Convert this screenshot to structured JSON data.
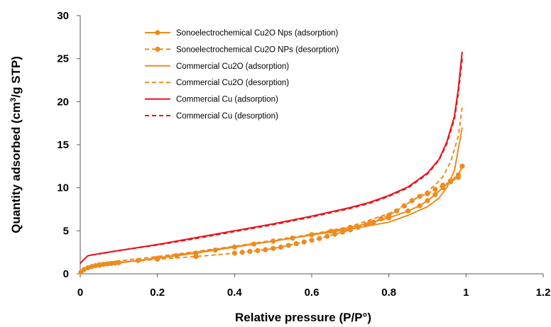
{
  "chart_data": {
    "type": "line",
    "xlabel": "Relative pressure (P/P°)",
    "ylabel_main": "Quantity adsorbed (cm",
    "ylabel_sup": "3",
    "ylabel_tail": "/g STP)",
    "xlim": [
      0,
      1.2
    ],
    "ylim": [
      0,
      30
    ],
    "xticks": [
      0,
      0.2,
      0.4,
      0.6,
      0.8,
      1,
      1.2
    ],
    "xtick_labels": [
      "0",
      "0.2",
      "0.4",
      "0.6",
      "0.8",
      "1",
      "1.2"
    ],
    "yticks": [
      0,
      5,
      10,
      15,
      20,
      25,
      30
    ],
    "ytick_labels": [
      "0",
      "5",
      "10",
      "15",
      "20",
      "25",
      "30"
    ],
    "grid": false,
    "legend_position": "top-left",
    "series": [
      {
        "name": "Sonoelectrochemical Cu2O Nps (adsorption)",
        "color": "#ed8c1f",
        "dash": "solid",
        "marker": true,
        "x": [
          0.002,
          0.01,
          0.02,
          0.03,
          0.04,
          0.05,
          0.06,
          0.07,
          0.08,
          0.09,
          0.1,
          0.15,
          0.2,
          0.25,
          0.3,
          0.35,
          0.4,
          0.45,
          0.5,
          0.55,
          0.6,
          0.65,
          0.7,
          0.75,
          0.8,
          0.85,
          0.88,
          0.9,
          0.92,
          0.94,
          0.96,
          0.98,
          0.99
        ],
        "y": [
          0.2,
          0.5,
          0.7,
          0.85,
          0.95,
          1.05,
          1.1,
          1.15,
          1.2,
          1.25,
          1.3,
          1.55,
          1.8,
          2.1,
          2.4,
          2.75,
          3.1,
          3.45,
          3.8,
          4.15,
          4.55,
          4.95,
          5.4,
          5.9,
          6.5,
          7.3,
          7.9,
          8.5,
          9.2,
          10.0,
          10.8,
          11.5,
          12.5
        ]
      },
      {
        "name": "Sonoelectrochemical Cu2O NPs (desorption)",
        "color": "#ed8c1f",
        "dash": "dashed",
        "marker": true,
        "x": [
          0.99,
          0.98,
          0.96,
          0.94,
          0.92,
          0.9,
          0.88,
          0.86,
          0.84,
          0.82,
          0.8,
          0.78,
          0.76,
          0.74,
          0.72,
          0.7,
          0.68,
          0.66,
          0.64,
          0.62,
          0.6,
          0.58,
          0.56,
          0.54,
          0.52,
          0.5,
          0.48,
          0.46,
          0.44,
          0.42,
          0.4,
          0.3,
          0.2,
          0.1,
          0.05
        ],
        "y": [
          12.5,
          11.2,
          10.7,
          10.3,
          9.8,
          9.3,
          9.0,
          8.5,
          7.9,
          7.3,
          6.8,
          6.4,
          6.0,
          5.7,
          5.4,
          5.1,
          4.85,
          4.6,
          4.35,
          4.1,
          3.9,
          3.7,
          3.5,
          3.3,
          3.1,
          2.95,
          2.8,
          2.7,
          2.6,
          2.5,
          2.4,
          2.0,
          1.7,
          1.3,
          1.0
        ]
      },
      {
        "name": "Commercial Cu2O (adsorption)",
        "color": "#ed8c1f",
        "dash": "solid",
        "marker": false,
        "x": [
          0.0,
          0.01,
          0.02,
          0.05,
          0.1,
          0.2,
          0.3,
          0.4,
          0.5,
          0.6,
          0.7,
          0.8,
          0.85,
          0.9,
          0.93,
          0.95,
          0.97,
          0.98,
          0.99
        ],
        "y": [
          0.2,
          0.5,
          0.7,
          0.95,
          1.25,
          1.85,
          2.5,
          3.15,
          3.8,
          4.5,
          5.2,
          6.0,
          6.8,
          7.8,
          8.8,
          10.0,
          12.0,
          14.5,
          17.0
        ]
      },
      {
        "name": "Commercial Cu2O (desorption)",
        "color": "#ed8c1f",
        "dash": "dashed",
        "marker": false,
        "x": [
          0.99,
          0.98,
          0.96,
          0.94,
          0.92,
          0.9,
          0.85,
          0.8,
          0.7,
          0.6,
          0.5,
          0.4,
          0.3,
          0.2,
          0.1,
          0.05
        ],
        "y": [
          19.3,
          16.0,
          13.0,
          11.3,
          10.3,
          9.6,
          8.2,
          7.0,
          5.5,
          4.6,
          3.9,
          3.2,
          2.6,
          2.0,
          1.5,
          1.2
        ]
      },
      {
        "name": "Commercial Cu (adsorption)",
        "color": "#e8131b",
        "dash": "solid",
        "marker": false,
        "x": [
          0.0,
          0.01,
          0.02,
          0.05,
          0.1,
          0.2,
          0.3,
          0.4,
          0.5,
          0.6,
          0.7,
          0.75,
          0.8,
          0.85,
          0.9,
          0.93,
          0.95,
          0.97,
          0.98,
          0.99
        ],
        "y": [
          1.2,
          1.7,
          2.1,
          2.35,
          2.7,
          3.4,
          4.2,
          5.0,
          5.8,
          6.7,
          7.7,
          8.3,
          9.1,
          10.1,
          11.7,
          13.3,
          15.3,
          18.3,
          21.5,
          25.8
        ]
      },
      {
        "name": "Commercial Cu (desorption)",
        "color": "#e8131b",
        "dash": "dashed",
        "marker": false,
        "x": [
          0.99,
          0.98,
          0.97,
          0.95,
          0.93,
          0.9,
          0.85,
          0.8,
          0.75,
          0.7,
          0.6,
          0.5,
          0.4,
          0.3,
          0.2,
          0.1,
          0.05
        ],
        "y": [
          25.0,
          21.0,
          18.0,
          15.1,
          13.2,
          11.6,
          10.0,
          9.0,
          8.2,
          7.6,
          6.6,
          5.7,
          4.9,
          4.1,
          3.35,
          2.7,
          2.3
        ]
      }
    ]
  }
}
